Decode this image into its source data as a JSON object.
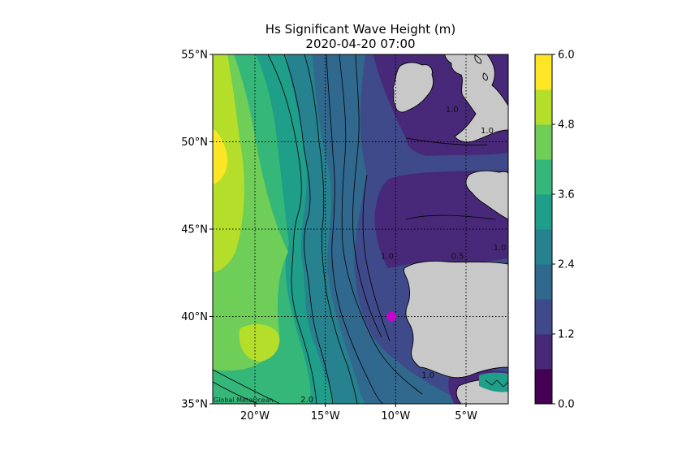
{
  "title": "Hs Significant Wave Height (m)",
  "subtitle": "2020-04-20 07:00",
  "watermark": "Global MeteOcean",
  "map": {
    "lon_range": [
      -23,
      -2
    ],
    "lat_range": [
      35,
      55
    ],
    "x_ticks": [
      {
        "value": -20,
        "label": "20°W"
      },
      {
        "value": -15,
        "label": "15°W"
      },
      {
        "value": -10,
        "label": "10°W"
      },
      {
        "value": -5,
        "label": "5°W"
      }
    ],
    "y_ticks": [
      {
        "value": 55,
        "label": "55°N"
      },
      {
        "value": 50,
        "label": "50°N"
      },
      {
        "value": 45,
        "label": "45°N"
      },
      {
        "value": 40,
        "label": "40°N"
      },
      {
        "value": 35,
        "label": "35°N"
      }
    ],
    "marker": {
      "lon": -10.3,
      "lat": 40.0,
      "color": "#cc00cc"
    },
    "contour_labels": [
      {
        "text": "1.0",
        "lon": -6.0,
        "lat": 51.7
      },
      {
        "text": "1.0",
        "lon": -3.5,
        "lat": 50.5
      },
      {
        "text": "1.0",
        "lon": -10.6,
        "lat": 43.3
      },
      {
        "text": "0.5",
        "lon": -5.6,
        "lat": 43.3
      },
      {
        "text": "1.0",
        "lon": -2.6,
        "lat": 43.8
      },
      {
        "text": "1.0",
        "lon": -7.7,
        "lat": 36.5
      },
      {
        "text": "2.0",
        "lon": -16.3,
        "lat": 35.1
      }
    ]
  },
  "colorbar": {
    "ticks": [
      "0.0",
      "1.2",
      "2.4",
      "3.6",
      "4.8",
      "6.0"
    ],
    "levels": [
      "#440154",
      "#482878",
      "#3e4a89",
      "#31688e",
      "#26828e",
      "#1f9e89",
      "#35b779",
      "#6ece58",
      "#b5de2b",
      "#fde725"
    ]
  }
}
